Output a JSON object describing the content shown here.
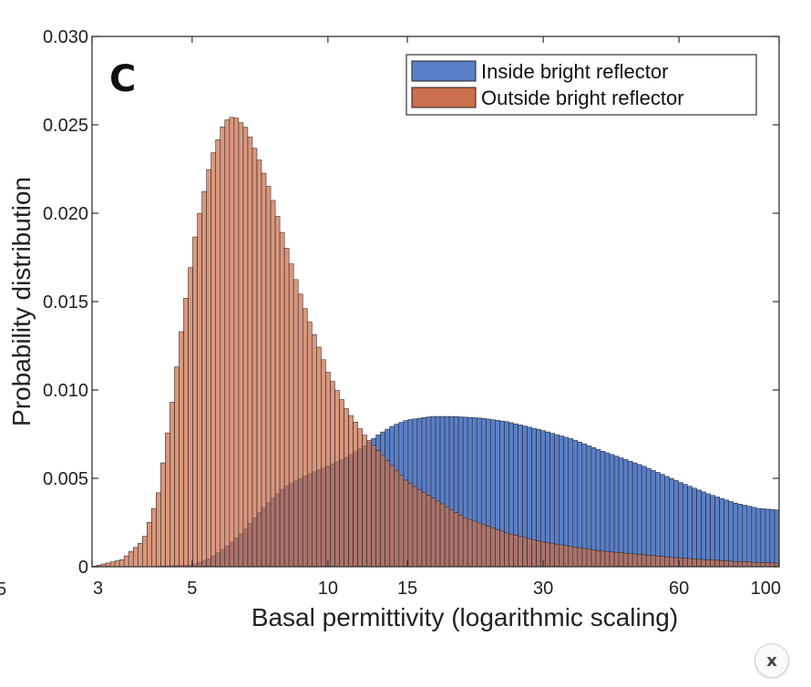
{
  "chart_data": {
    "type": "histogram",
    "panel_label": "C",
    "xlabel": "Basal permittivity (logarithmic scaling)",
    "ylabel": "Probability distribution",
    "x_scale": "log",
    "xlim": [
      3,
      100
    ],
    "ylim": [
      0,
      0.03
    ],
    "x_ticks": [
      3,
      5,
      10,
      15,
      30,
      60,
      100
    ],
    "x_tick_labels": [
      "3",
      "5",
      "10",
      "15",
      "30",
      "60",
      "100"
    ],
    "partial_tick_label": "5",
    "y_ticks": [
      0,
      0.005,
      0.01,
      0.015,
      0.02,
      0.025,
      0.03
    ],
    "y_tick_labels": [
      "0",
      "0.005",
      "0.010",
      "0.015",
      "0.020",
      "0.025",
      "0.030"
    ],
    "legend_position": "top-right",
    "series": [
      {
        "name": "Outside bright reflector",
        "color": "#c96f4c",
        "edge_color": "#3a2a22",
        "points": [
          [
            3.0,
            0.0
          ],
          [
            3.5,
            0.0004
          ],
          [
            3.9,
            0.0015
          ],
          [
            4.2,
            0.004
          ],
          [
            4.5,
            0.009
          ],
          [
            4.8,
            0.0145
          ],
          [
            5.1,
            0.019
          ],
          [
            5.5,
            0.023
          ],
          [
            5.9,
            0.0252
          ],
          [
            6.2,
            0.0255
          ],
          [
            6.6,
            0.0248
          ],
          [
            7.0,
            0.0232
          ],
          [
            7.5,
            0.021
          ],
          [
            8.0,
            0.0185
          ],
          [
            8.5,
            0.0162
          ],
          [
            9.0,
            0.0142
          ],
          [
            10.0,
            0.011
          ],
          [
            11.0,
            0.0089
          ],
          [
            12.0,
            0.0075
          ],
          [
            13.0,
            0.0065
          ],
          [
            15.0,
            0.0048
          ],
          [
            20.0,
            0.0028
          ],
          [
            25.0,
            0.0019
          ],
          [
            30.0,
            0.0014
          ],
          [
            40.0,
            0.0009
          ],
          [
            60.0,
            0.0005
          ],
          [
            80.0,
            0.0003
          ],
          [
            100.0,
            0.0002
          ]
        ]
      },
      {
        "name": "Inside bright reflector",
        "color": "#5a7fc6",
        "edge_color": "#22283a",
        "points": [
          [
            3.0,
            0.0
          ],
          [
            4.0,
            0.0
          ],
          [
            5.0,
            0.0001
          ],
          [
            5.5,
            0.0005
          ],
          [
            6.0,
            0.0012
          ],
          [
            6.5,
            0.002
          ],
          [
            7.0,
            0.003
          ],
          [
            7.5,
            0.0038
          ],
          [
            8.0,
            0.0045
          ],
          [
            9.0,
            0.0052
          ],
          [
            10.0,
            0.0057
          ],
          [
            11.0,
            0.0062
          ],
          [
            12.0,
            0.0068
          ],
          [
            13.0,
            0.0075
          ],
          [
            14.0,
            0.008
          ],
          [
            15.0,
            0.0083
          ],
          [
            17.0,
            0.0085
          ],
          [
            19.0,
            0.0085
          ],
          [
            22.0,
            0.0084
          ],
          [
            25.0,
            0.0082
          ],
          [
            30.0,
            0.0077
          ],
          [
            35.0,
            0.0072
          ],
          [
            40.0,
            0.0066
          ],
          [
            50.0,
            0.0057
          ],
          [
            60.0,
            0.0048
          ],
          [
            70.0,
            0.0041
          ],
          [
            80.0,
            0.0036
          ],
          [
            90.0,
            0.0033
          ],
          [
            100.0,
            0.0032
          ]
        ]
      }
    ]
  },
  "ui": {
    "close_label": "x"
  }
}
